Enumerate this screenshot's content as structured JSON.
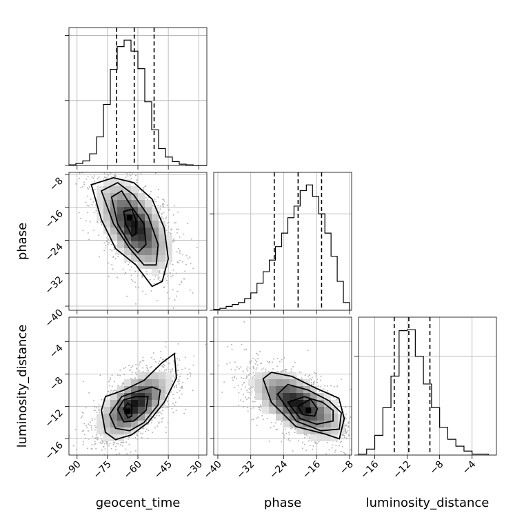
{
  "chart_data": {
    "type": "corner",
    "parameters": [
      "geocent_time",
      "phase",
      "luminosity_distance"
    ],
    "axis_labels": {
      "x": [
        "geocent_time",
        "phase",
        "luminosity_distance"
      ],
      "y": [
        "phase",
        "luminosity_distance"
      ]
    },
    "ranges": {
      "geocent_time": [
        -94,
        -26
      ],
      "phase": [
        -41,
        -7.5
      ],
      "luminosity_distance": [
        -18,
        -1
      ]
    },
    "ticks": {
      "geocent_time": [
        -90,
        -75,
        -60,
        -45,
        -30
      ],
      "phase": [
        -40,
        -32,
        -24,
        -16,
        -8
      ],
      "luminosity_distance": [
        -16,
        -12,
        -8,
        -4
      ]
    },
    "tick_labels": {
      "geocent_time": [
        "−90",
        "−75",
        "−60",
        "−45",
        "−30"
      ],
      "phase": [
        "−40",
        "−32",
        "−24",
        "−16",
        "−8"
      ],
      "luminosity_distance": [
        "−16",
        "−12",
        "−8",
        "−4"
      ]
    },
    "histograms": [
      {
        "parameter": "geocent_time",
        "bin_edges": [
          -94,
          -90.6,
          -87.2,
          -83.8,
          -80.4,
          -77,
          -73.6,
          -70.2,
          -66.8,
          -63.4,
          -60,
          -56.6,
          -53.2,
          -49.8,
          -46.4,
          -43,
          -39.6,
          -36.2,
          -32.8,
          -29.4,
          -26
        ],
        "counts": [
          1,
          3,
          7,
          18,
          44,
          94,
          148,
          183,
          193,
          176,
          149,
          98,
          55,
          26,
          13,
          6,
          2,
          1,
          0,
          0
        ],
        "quantiles": [
          -70.5,
          -61.8,
          -52.0
        ]
      },
      {
        "parameter": "phase",
        "bin_edges": [
          -41,
          -39.5,
          -38,
          -36.5,
          -35,
          -33.5,
          -32,
          -30.5,
          -29,
          -27.5,
          -26,
          -24.5,
          -23,
          -21.5,
          -20,
          -18.5,
          -17,
          -15.5,
          -14,
          -12.5,
          -11,
          -9.5,
          -8
        ],
        "counts": [
          1,
          2,
          4,
          6,
          8,
          12,
          18,
          28,
          40,
          52,
          66,
          80,
          96,
          108,
          124,
          130,
          118,
          100,
          80,
          56,
          30,
          8
        ],
        "quantiles": [
          -26.3,
          -20.5,
          -14.8
        ]
      },
      {
        "parameter": "luminosity_distance",
        "bin_edges": [
          -18,
          -17,
          -16,
          -15,
          -14,
          -13,
          -12,
          -11,
          -10,
          -9,
          -8,
          -7,
          -6,
          -5,
          -4,
          -3,
          -2
        ],
        "counts": [
          1,
          6,
          20,
          48,
          80,
          126,
          127,
          100,
          72,
          48,
          28,
          16,
          9,
          4,
          1,
          1
        ],
        "quantiles": [
          -13.6,
          -11.8,
          -9.2
        ]
      }
    ],
    "pairs": [
      {
        "x_param": "geocent_time",
        "y_param": "phase",
        "peak": [
          -64,
          -18.5
        ],
        "contour_levels": [
          0.12,
          0.5,
          0.86
        ],
        "contours": [
          [
            [
              -67,
              -17
            ],
            [
              -66,
              -20
            ],
            [
              -63,
              -23
            ],
            [
              -61,
              -22.5
            ],
            [
              -61,
              -19
            ],
            [
              -63,
              -16.5
            ],
            [
              -67,
              -17
            ]
          ],
          [
            [
              -73,
              -13.5
            ],
            [
              -70,
              -20
            ],
            [
              -64,
              -25
            ],
            [
              -60,
              -27
            ],
            [
              -56,
              -25
            ],
            [
              -57,
              -20
            ],
            [
              -63,
              -16
            ],
            [
              -68,
              -12
            ],
            [
              -73,
              -13.5
            ]
          ],
          [
            [
              -78,
              -12
            ],
            [
              -72,
              -20
            ],
            [
              -64,
              -26
            ],
            [
              -57,
              -30
            ],
            [
              -51,
              -30
            ],
            [
              -50,
              -25
            ],
            [
              -55,
              -18
            ],
            [
              -62,
              -13
            ],
            [
              -70,
              -10
            ],
            [
              -78,
              -12
            ]
          ],
          [
            [
              -83,
              -10.5
            ],
            [
              -78,
              -19
            ],
            [
              -71,
              -26
            ],
            [
              -61,
              -30
            ],
            [
              -53,
              -35.2
            ],
            [
              -48,
              -34
            ],
            [
              -45,
              -28.5
            ],
            [
              -47,
              -21
            ],
            [
              -53,
              -14
            ],
            [
              -62,
              -10
            ],
            [
              -72,
              -8.8
            ],
            [
              -83,
              -10.5
            ]
          ]
        ]
      },
      {
        "x_param": "geocent_time",
        "y_param": "luminosity_distance",
        "peak": [
          -65,
          -12.6
        ],
        "contour_levels": [
          0.12,
          0.5,
          0.86
        ],
        "contours": [
          [
            [
              -67,
              -12.3
            ],
            [
              -65,
              -13.4
            ],
            [
              -63,
              -13.2
            ],
            [
              -63,
              -12
            ],
            [
              -65,
              -11.6
            ],
            [
              -67,
              -12.3
            ]
          ],
          [
            [
              -70,
              -12.4
            ],
            [
              -67,
              -13.9
            ],
            [
              -62,
              -13.8
            ],
            [
              -56,
              -12.5
            ],
            [
              -55,
              -10.8
            ],
            [
              -61,
              -10.8
            ],
            [
              -67,
              -11.2
            ],
            [
              -70,
              -12.4
            ]
          ],
          [
            [
              -74,
              -13
            ],
            [
              -71,
              -14.7
            ],
            [
              -64,
              -15
            ],
            [
              -57,
              -14
            ],
            [
              -50,
              -11.8
            ],
            [
              -49,
              -10
            ],
            [
              -53,
              -9.6
            ],
            [
              -61,
              -10.2
            ],
            [
              -68,
              -10.8
            ],
            [
              -74,
              -13
            ]
          ],
          [
            [
              -78,
              -12.5
            ],
            [
              -76,
              -15.2
            ],
            [
              -71,
              -16.1
            ],
            [
              -63,
              -15.5
            ],
            [
              -55,
              -14
            ],
            [
              -47,
              -11.5
            ],
            [
              -41,
              -8.5
            ],
            [
              -42,
              -5.5
            ],
            [
              -48,
              -6.6
            ],
            [
              -57,
              -8.8
            ],
            [
              -67,
              -10
            ],
            [
              -76,
              -10.8
            ],
            [
              -78,
              -12.5
            ]
          ]
        ]
      },
      {
        "x_param": "phase",
        "y_param": "luminosity_distance",
        "peak": [
          -18,
          -12.5
        ],
        "contour_levels": [
          0.12,
          0.5,
          0.86
        ],
        "contours": [
          [
            [
              -20.5,
              -12
            ],
            [
              -19.5,
              -13
            ],
            [
              -16.5,
              -13.2
            ],
            [
              -15.8,
              -12.3
            ],
            [
              -17.5,
              -11.1
            ],
            [
              -20.5,
              -12
            ]
          ],
          [
            [
              -23,
              -11.5
            ],
            [
              -20,
              -13.5
            ],
            [
              -16,
              -14.2
            ],
            [
              -12,
              -13.8
            ],
            [
              -12,
              -12.5
            ],
            [
              -14.5,
              -11.5
            ],
            [
              -19,
              -10.8
            ],
            [
              -23,
              -11.5
            ]
          ],
          [
            [
              -25.5,
              -10.5
            ],
            [
              -21,
              -13.8
            ],
            [
              -15,
              -15
            ],
            [
              -10.5,
              -14.8
            ],
            [
              -10,
              -12.8
            ],
            [
              -13,
              -11.3
            ],
            [
              -18,
              -10
            ],
            [
              -23,
              -9.3
            ],
            [
              -25.5,
              -10.5
            ]
          ],
          [
            [
              -29,
              -8.6
            ],
            [
              -27,
              -11.5
            ],
            [
              -21,
              -14.5
            ],
            [
              -14,
              -15.4
            ],
            [
              -10.5,
              -16
            ],
            [
              -9.3,
              -13.5
            ],
            [
              -10.6,
              -11
            ],
            [
              -16,
              -9.8
            ],
            [
              -22,
              -8.3
            ],
            [
              -27,
              -7.8
            ],
            [
              -29,
              -8.6
            ]
          ]
        ]
      }
    ]
  }
}
